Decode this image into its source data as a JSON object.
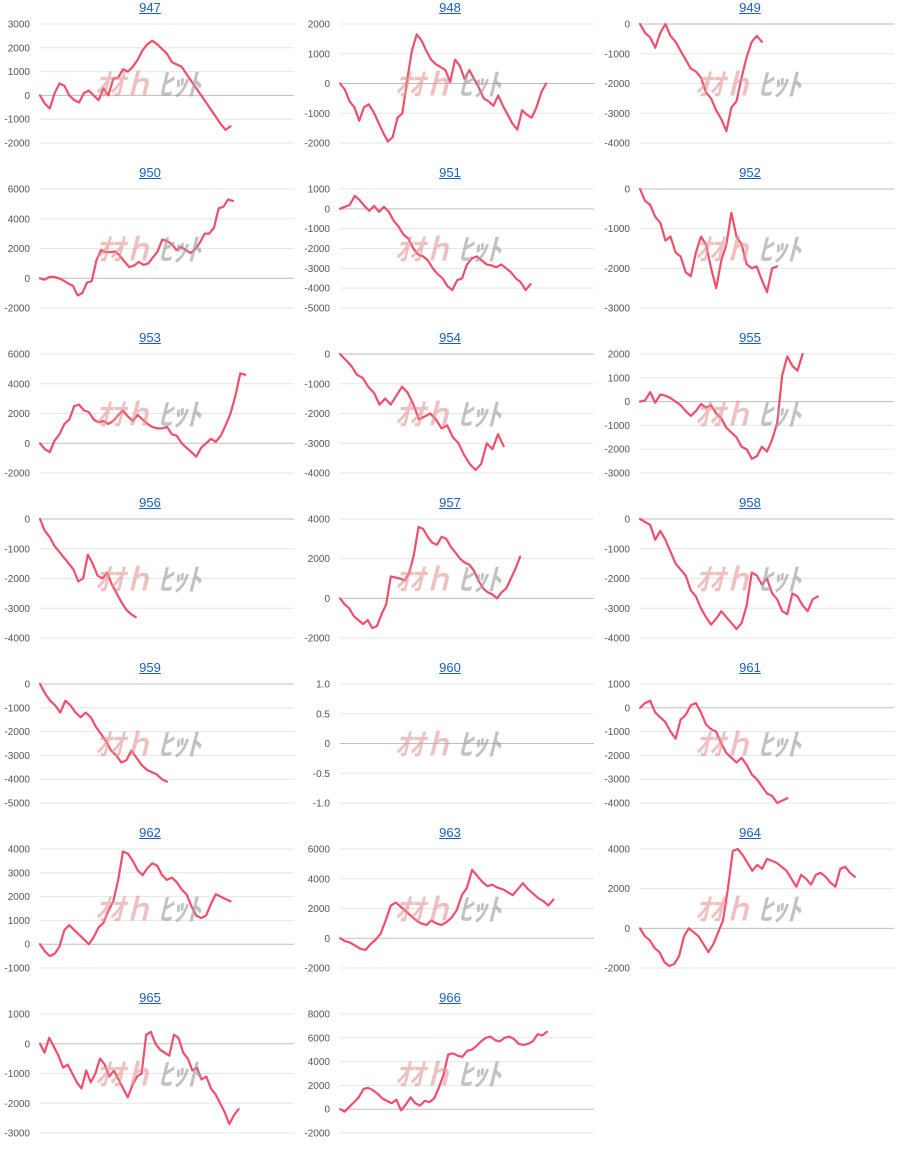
{
  "colors": {
    "series": "#ef4f6c",
    "title_link": "#1a5fc0",
    "grid": "#e6e6e6",
    "zero_line": "#bdbdbd"
  },
  "watermark": {
    "left": "ｵｵｈ",
    "right": "ﾋｯﾄ"
  },
  "chart_data": [
    {
      "type": "line",
      "title": "947",
      "yticks": [
        3000,
        2000,
        1000,
        0,
        -1000,
        -2000
      ],
      "values": [
        0,
        -350,
        -550,
        100,
        500,
        400,
        0,
        -200,
        -300,
        100,
        200,
        0,
        -200,
        300,
        0,
        700,
        750,
        1100,
        1000,
        1200,
        1500,
        1900,
        2150,
        2300,
        2150,
        1950,
        1750,
        1400,
        1300,
        1200,
        900,
        600,
        300,
        0,
        -300,
        -600,
        -900,
        -1200,
        -1450,
        -1300
      ],
      "xmax": 52
    },
    {
      "type": "line",
      "title": "948",
      "yticks": [
        2000,
        1000,
        0,
        -1000,
        -2000
      ],
      "values": [
        0,
        -200,
        -600,
        -800,
        -1250,
        -800,
        -700,
        -950,
        -1300,
        -1650,
        -1950,
        -1800,
        -1150,
        -1000,
        100,
        1100,
        1650,
        1450,
        1100,
        800,
        650,
        550,
        450,
        50,
        800,
        600,
        150,
        450,
        150,
        -150,
        -500,
        -600,
        -750,
        -400,
        -750,
        -1050,
        -1350,
        -1550,
        -900,
        -1050,
        -1150,
        -800,
        -300,
        0
      ],
      "xmax": 53
    },
    {
      "type": "line",
      "title": "949",
      "yticks": [
        0,
        -1000,
        -2000,
        -3000,
        -4000
      ],
      "values": [
        0,
        -300,
        -450,
        -800,
        -300,
        0,
        -400,
        -600,
        -900,
        -1200,
        -1500,
        -1600,
        -1800,
        -2300,
        -2500,
        -2900,
        -3200,
        -3600,
        -2800,
        -2600,
        -1800,
        -1100,
        -600,
        -400,
        -600
      ],
      "xmax": 50
    },
    {
      "type": "line",
      "title": "950",
      "yticks": [
        6000,
        4000,
        2000,
        0,
        -2000
      ],
      "values": [
        0,
        -100,
        100,
        100,
        0,
        -150,
        -350,
        -500,
        -1150,
        -1000,
        -300,
        -200,
        1200,
        1900,
        1750,
        1750,
        1800,
        1500,
        1100,
        750,
        850,
        1100,
        900,
        1000,
        1400,
        1800,
        2600,
        2500,
        2300,
        1900,
        2100,
        1900,
        1700,
        1950,
        2400,
        3000,
        3000,
        3400,
        4700,
        4800,
        5300,
        5200
      ],
      "xmax": 54
    },
    {
      "type": "line",
      "title": "951",
      "yticks": [
        1000,
        0,
        -1000,
        -2000,
        -3000,
        -4000,
        -5000
      ],
      "values": [
        0,
        100,
        200,
        650,
        450,
        150,
        -100,
        150,
        -150,
        100,
        -150,
        -600,
        -900,
        -1300,
        -1500,
        -2000,
        -2300,
        -2400,
        -2600,
        -3000,
        -3300,
        -3500,
        -3900,
        -4100,
        -3600,
        -3500,
        -2800,
        -2500,
        -2400,
        -2600,
        -2800,
        -2850,
        -2950,
        -2800,
        -3000,
        -3200,
        -3500,
        -3700,
        -4100,
        -3800
      ],
      "xmax": 52
    },
    {
      "type": "line",
      "title": "952",
      "yticks": [
        0,
        -1000,
        -2000,
        -3000
      ],
      "values": [
        0,
        -300,
        -400,
        -700,
        -850,
        -1300,
        -1200,
        -1600,
        -1700,
        -2100,
        -2200,
        -1600,
        -1200,
        -1400,
        -2000,
        -2500,
        -1800,
        -1400,
        -600,
        -1200,
        -1400,
        -1900,
        -2000,
        -1950,
        -2300,
        -2600,
        -2000,
        -1950
      ],
      "xmax": 50
    },
    {
      "type": "line",
      "title": "953",
      "yticks": [
        6000,
        4000,
        2000,
        0,
        -2000
      ],
      "values": [
        0,
        -400,
        -600,
        200,
        600,
        1300,
        1600,
        2500,
        2600,
        2200,
        2100,
        1600,
        1400,
        1500,
        1300,
        1500,
        1900,
        2200,
        1800,
        1500,
        1900,
        1600,
        1300,
        1100,
        1000,
        1000,
        1100,
        600,
        500,
        0,
        -300,
        -600,
        -900,
        -300,
        0,
        300,
        100,
        500,
        1200,
        2000,
        3200,
        4700,
        4600
      ],
      "xmax": 52
    },
    {
      "type": "line",
      "title": "954",
      "yticks": [
        0,
        -1000,
        -2000,
        -3000,
        -4000
      ],
      "values": [
        0,
        -200,
        -400,
        -700,
        -800,
        -1100,
        -1300,
        -1700,
        -1500,
        -1700,
        -1400,
        -1100,
        -1300,
        -1700,
        -2200,
        -2100,
        -2000,
        -2200,
        -2500,
        -2400,
        -2800,
        -3000,
        -3400,
        -3700,
        -3900,
        -3700,
        -3000,
        -3200,
        -2700,
        -3100
      ],
      "xmax": 45
    },
    {
      "type": "line",
      "title": "955",
      "yticks": [
        2000,
        1000,
        0,
        -1000,
        -2000,
        -3000
      ],
      "values": [
        0,
        50,
        400,
        -50,
        300,
        250,
        150,
        0,
        -150,
        -400,
        -600,
        -400,
        -100,
        -250,
        -150,
        -500,
        -700,
        -1100,
        -1300,
        -1500,
        -1900,
        -2000,
        -2400,
        -2300,
        -1900,
        -2100,
        -1600,
        -900,
        1100,
        1900,
        1500,
        1300,
        2000
      ],
      "xmax": 50
    },
    {
      "type": "line",
      "title": "956",
      "yticks": [
        0,
        -1000,
        -2000,
        -3000,
        -4000
      ],
      "values": [
        0,
        -400,
        -600,
        -900,
        -1100,
        -1300,
        -1500,
        -1700,
        -2100,
        -2000,
        -1200,
        -1500,
        -1900,
        -2000,
        -1800,
        -2200,
        -2500,
        -2800,
        -3050,
        -3200,
        -3300
      ],
      "xmax": 53
    },
    {
      "type": "line",
      "title": "957",
      "yticks": [
        4000,
        2000,
        0,
        -2000
      ],
      "values": [
        0,
        -300,
        -500,
        -900,
        -1100,
        -1300,
        -1100,
        -1500,
        -1400,
        -800,
        -300,
        1100,
        1050,
        1000,
        900,
        1300,
        2200,
        3600,
        3500,
        3100,
        2800,
        2700,
        3100,
        3000,
        2600,
        2300,
        2000,
        1800,
        1700,
        1400,
        900,
        500,
        300,
        200,
        0,
        300,
        500,
        1000,
        1500,
        2100
      ],
      "xmax": 55
    },
    {
      "type": "line",
      "title": "958",
      "yticks": [
        0,
        -1000,
        -2000,
        -3000,
        -4000
      ],
      "values": [
        0,
        -100,
        -200,
        -700,
        -400,
        -700,
        -1100,
        -1500,
        -1700,
        -1900,
        -2400,
        -2600,
        -3000,
        -3300,
        -3550,
        -3350,
        -3100,
        -3300,
        -3500,
        -3700,
        -3500,
        -2900,
        -1800,
        -1900,
        -2200,
        -2000,
        -2500,
        -2700,
        -3100,
        -3200,
        -2500,
        -2600,
        -2900,
        -3100,
        -2700,
        -2600
      ],
      "xmax": 50
    },
    {
      "type": "line",
      "title": "959",
      "yticks": [
        0,
        -1000,
        -2000,
        -3000,
        -4000,
        -5000
      ],
      "values": [
        0,
        -400,
        -700,
        -900,
        -1200,
        -700,
        -900,
        -1200,
        -1400,
        -1200,
        -1400,
        -1800,
        -2100,
        -2400,
        -2800,
        -3000,
        -3300,
        -3200,
        -2800,
        -3100,
        -3400,
        -3600,
        -3700,
        -3800,
        -4000,
        -4100
      ],
      "xmax": 50
    },
    {
      "type": "line",
      "title": "960",
      "yticks": [
        1.0,
        0.5,
        0,
        -0.5,
        -1.0
      ],
      "ytick_labels": [
        "1.0",
        "0.5",
        "0",
        "-0.5",
        "-1.0"
      ],
      "values": [],
      "xmax": 50
    },
    {
      "type": "line",
      "title": "961",
      "yticks": [
        1000,
        0,
        -1000,
        -2000,
        -3000,
        -4000
      ],
      "values": [
        0,
        200,
        300,
        -200,
        -400,
        -600,
        -1000,
        -1300,
        -500,
        -300,
        100,
        200,
        -200,
        -700,
        -900,
        -1000,
        -1500,
        -1900,
        -2100,
        -2300,
        -2100,
        -2400,
        -2800,
        -3000,
        -3300,
        -3600,
        -3700,
        -4000,
        -3900,
        -3800
      ],
      "xmax": 50
    },
    {
      "type": "line",
      "title": "962",
      "yticks": [
        4000,
        3000,
        2000,
        1000,
        0,
        -1000
      ],
      "values": [
        0,
        -300,
        -500,
        -400,
        -100,
        600,
        800,
        600,
        400,
        200,
        0,
        300,
        700,
        900,
        1400,
        1800,
        2700,
        3900,
        3800,
        3500,
        3100,
        2900,
        3200,
        3400,
        3300,
        2900,
        2700,
        2800,
        2600,
        2300,
        2100,
        1600,
        1200,
        1100,
        1200,
        1700,
        2100,
        2000,
        1900,
        1800
      ],
      "xmax": 52
    },
    {
      "type": "line",
      "title": "963",
      "yticks": [
        6000,
        4000,
        2000,
        0,
        -2000
      ],
      "values": [
        0,
        -200,
        -300,
        -500,
        -700,
        -800,
        -400,
        -100,
        300,
        1200,
        2200,
        2400,
        2100,
        1800,
        1500,
        1200,
        1000,
        900,
        1200,
        1000,
        900,
        1100,
        1400,
        1900,
        2900,
        3400,
        4600,
        4200,
        3800,
        3500,
        3600,
        3400,
        3300,
        3100,
        2900,
        3300,
        3700,
        3300,
        3000,
        2700,
        2500,
        2200,
        2600
      ],
      "xmax": 50
    },
    {
      "type": "line",
      "title": "964",
      "yticks": [
        4000,
        2000,
        0,
        -2000
      ],
      "values": [
        0,
        -400,
        -600,
        -1000,
        -1200,
        -1700,
        -1900,
        -1800,
        -1400,
        -400,
        0,
        -200,
        -400,
        -800,
        -1200,
        -800,
        -200,
        400,
        2000,
        3900,
        4000,
        3700,
        3300,
        2900,
        3200,
        3000,
        3500,
        3400,
        3300,
        3100,
        2900,
        2500,
        2100,
        2700,
        2500,
        2200,
        2700,
        2800,
        2600,
        2300,
        2100,
        3000,
        3100,
        2800,
        2600
      ],
      "xmax": 52
    },
    {
      "type": "line",
      "title": "965",
      "yticks": [
        1000,
        0,
        -1000,
        -2000,
        -3000
      ],
      "values": [
        0,
        -300,
        200,
        -100,
        -400,
        -800,
        -700,
        -1000,
        -1300,
        -1500,
        -900,
        -1300,
        -1000,
        -500,
        -700,
        -1100,
        -900,
        -1200,
        -1500,
        -1800,
        -1400,
        -1100,
        -1000,
        300,
        400,
        0,
        -200,
        -300,
        -400,
        300,
        200,
        -300,
        -500,
        -900,
        -800,
        -1200,
        -1100,
        -1500,
        -1700,
        -2000,
        -2300,
        -2700,
        -2400,
        -2200
      ],
      "xmax": 55
    },
    {
      "type": "line",
      "title": "966",
      "yticks": [
        8000,
        6000,
        4000,
        2000,
        0,
        -2000
      ],
      "values": [
        0,
        -200,
        200,
        600,
        1000,
        1700,
        1800,
        1600,
        1300,
        900,
        700,
        500,
        800,
        -100,
        400,
        1000,
        500,
        300,
        700,
        600,
        900,
        1800,
        2900,
        4600,
        4700,
        4500,
        4400,
        4900,
        5000,
        5300,
        5700,
        6000,
        6100,
        5800,
        5700,
        6000,
        6100,
        5900,
        5500,
        5400,
        5500,
        5700,
        6300,
        6200,
        6500
      ],
      "xmax": 54
    }
  ]
}
